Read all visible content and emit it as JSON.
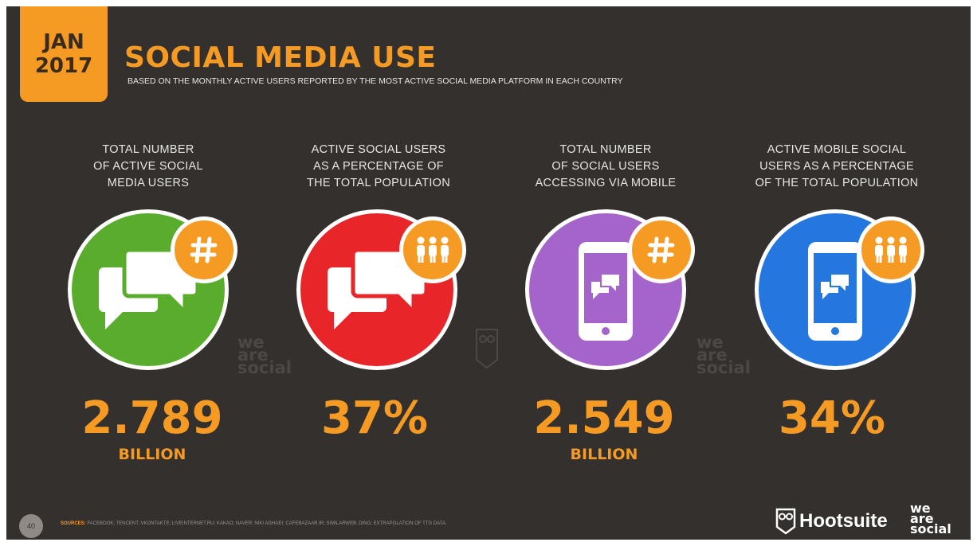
{
  "header": {
    "date_month": "JAN",
    "date_year": "2017",
    "title": "SOCIAL MEDIA USE",
    "subtitle": "BASED ON THE MONTHLY ACTIVE USERS REPORTED BY THE MOST ACTIVE SOCIAL MEDIA PLATFORM IN EACH COUNTRY"
  },
  "stats": [
    {
      "label": "TOTAL NUMBER\nOF ACTIVE SOCIAL\nMEDIA USERS",
      "value": "2.789",
      "unit": "BILLION",
      "color": "#5aac2c",
      "icon": "speech-bubbles-icon",
      "badge_icon": "hashtag-icon"
    },
    {
      "label": "ACTIVE SOCIAL USERS\nAS A PERCENTAGE OF\nTHE TOTAL POPULATION",
      "value": "37%",
      "unit": "",
      "color": "#e8262a",
      "icon": "speech-bubbles-icon",
      "badge_icon": "people-icon"
    },
    {
      "label": "TOTAL NUMBER\nOF SOCIAL USERS\nACCESSING VIA MOBILE",
      "value": "2.549",
      "unit": "BILLION",
      "color": "#a564c9",
      "icon": "mobile-phone-icon",
      "badge_icon": "hashtag-icon"
    },
    {
      "label": "ACTIVE MOBILE SOCIAL\nUSERS AS A PERCENTAGE\nOF THE TOTAL POPULATION",
      "value": "34%",
      "unit": "",
      "color": "#2477de",
      "icon": "mobile-phone-icon",
      "badge_icon": "people-icon"
    }
  ],
  "watermark": {
    "line1": "we",
    "line2": "are",
    "line3": "social"
  },
  "footer": {
    "page_number": "40",
    "sources_label": "SOURCES:",
    "sources_text": "FACEBOOK; TENCENT; VKONTAKTE; LIVEINTERNET.RU; KAKAO; NAVER; NIKI AGHAEI; CAFEBAZAAR.IR; SIMILARWEB; DING; EXTRAPOLATION OF TTG DATA.",
    "brand_hootsuite": "Hootsuite",
    "brand_wearesocial": [
      "we",
      "are",
      "social"
    ]
  },
  "colors": {
    "accent": "#f59a23",
    "background": "#33302e",
    "text": "#e8e6e3"
  }
}
